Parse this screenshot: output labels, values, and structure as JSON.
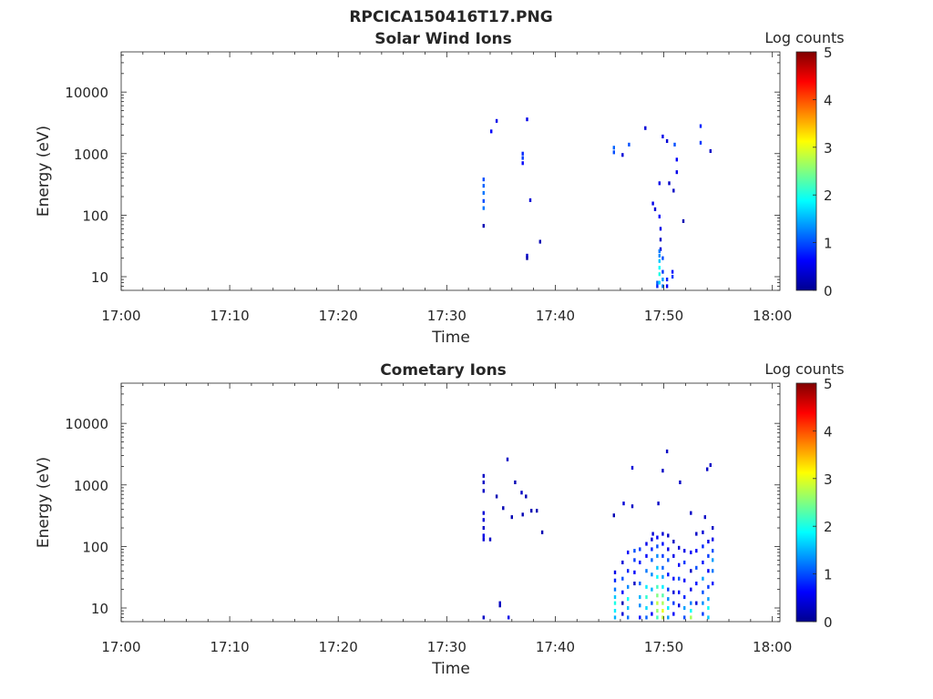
{
  "figure": {
    "title": "RPCICA150416T17.PNG",
    "colorbar_colors": [
      "#00008f",
      "#0000ff",
      "#0080ff",
      "#00ffff",
      "#80ff80",
      "#ffff00",
      "#ff8000",
      "#ff0000",
      "#800000"
    ]
  },
  "chart_data": [
    {
      "type": "heatmap",
      "title": "Solar Wind Ions",
      "xlabel": "Time",
      "ylabel": "Energy (eV)",
      "xticks": [
        "17:00",
        "17:10",
        "17:20",
        "17:30",
        "17:40",
        "17:50",
        "18:00"
      ],
      "xlim_minutes": [
        0,
        60.7
      ],
      "yscale": "log",
      "ylim": [
        6,
        45000
      ],
      "yticks": [
        10,
        100,
        1000,
        10000
      ],
      "ytick_labels": [
        "10",
        "100",
        "1000",
        "10000"
      ],
      "colorbar": {
        "label": "Log counts",
        "range": [
          0,
          5
        ],
        "ticks": [
          "0",
          "1",
          "2",
          "3",
          "4",
          "5"
        ]
      },
      "cells": [
        [
          33.4,
          67,
          0.2
        ],
        [
          33.4,
          130,
          1.2
        ],
        [
          33.4,
          170,
          1.0
        ],
        [
          33.4,
          230,
          1.2
        ],
        [
          33.4,
          300,
          1.1
        ],
        [
          33.4,
          380,
          1.0
        ],
        [
          34.1,
          2300,
          0.6
        ],
        [
          34.6,
          3400,
          0.5
        ],
        [
          37.0,
          700,
          0.6
        ],
        [
          37.0,
          850,
          0.9
        ],
        [
          37.0,
          1000,
          0.8
        ],
        [
          37.4,
          3600,
          0.5
        ],
        [
          37.7,
          175,
          0.4
        ],
        [
          37.4,
          20,
          0.1
        ],
        [
          37.4,
          22,
          0.3
        ],
        [
          38.6,
          37,
          0.2
        ],
        [
          45.4,
          1050,
          1.0
        ],
        [
          45.4,
          1250,
          1.1
        ],
        [
          46.2,
          950,
          0.4
        ],
        [
          46.8,
          1400,
          1.0
        ],
        [
          48.3,
          2600,
          0.4
        ],
        [
          49.0,
          155,
          0.5
        ],
        [
          49.2,
          125,
          0.4
        ],
        [
          49.6,
          95,
          0.6
        ],
        [
          49.6,
          330,
          0.5
        ],
        [
          49.9,
          1900,
          0.5
        ],
        [
          50.3,
          1600,
          0.4
        ],
        [
          50.5,
          330,
          0.3
        ],
        [
          50.9,
          250,
          0.3
        ],
        [
          51.0,
          1400,
          1.0
        ],
        [
          51.2,
          800,
          0.6
        ],
        [
          51.2,
          500,
          0.5
        ],
        [
          51.8,
          80,
          0.2
        ],
        [
          53.4,
          2800,
          0.8
        ],
        [
          53.4,
          1500,
          0.9
        ],
        [
          54.3,
          1100,
          0.3
        ],
        [
          49.7,
          60,
          0.5
        ],
        [
          49.7,
          40,
          0.3
        ],
        [
          49.7,
          28,
          0.4
        ],
        [
          49.4,
          7,
          0.8
        ],
        [
          49.4,
          8,
          1.1
        ],
        [
          49.6,
          8,
          1.7
        ],
        [
          49.6,
          11,
          2.0
        ],
        [
          49.6,
          14,
          1.9
        ],
        [
          49.6,
          18,
          1.6
        ],
        [
          49.6,
          22,
          1.3
        ],
        [
          49.6,
          26,
          1.2
        ],
        [
          49.9,
          7,
          1.2
        ],
        [
          49.9,
          9,
          1.4
        ],
        [
          49.9,
          12,
          0.9
        ],
        [
          49.9,
          20,
          1.0
        ],
        [
          50.3,
          7,
          0.6
        ],
        [
          50.3,
          9,
          0.8
        ],
        [
          50.8,
          12,
          0.7
        ],
        [
          50.8,
          10,
          0.9
        ]
      ]
    },
    {
      "type": "heatmap",
      "title": "Cometary Ions",
      "xlabel": "Time",
      "ylabel": "Energy (eV)",
      "xticks": [
        "17:00",
        "17:10",
        "17:20",
        "17:30",
        "17:40",
        "17:50",
        "18:00"
      ],
      "xlim_minutes": [
        0,
        60.7
      ],
      "yscale": "log",
      "ylim": [
        6,
        45000
      ],
      "yticks": [
        10,
        100,
        1000,
        10000
      ],
      "ytick_labels": [
        "10",
        "100",
        "1000",
        "10000"
      ],
      "colorbar": {
        "label": "Log counts",
        "range": [
          0,
          5
        ],
        "ticks": [
          "0",
          "1",
          "2",
          "3",
          "4",
          "5"
        ]
      },
      "cells": [
        [
          33.4,
          1400,
          0.3
        ],
        [
          33.4,
          1100,
          0.3
        ],
        [
          33.4,
          800,
          0.3
        ],
        [
          33.4,
          350,
          0.4
        ],
        [
          33.4,
          270,
          0.4
        ],
        [
          33.4,
          200,
          0.3
        ],
        [
          33.4,
          150,
          0.5
        ],
        [
          33.4,
          130,
          0.4
        ],
        [
          34.0,
          130,
          0.3
        ],
        [
          34.6,
          650,
          0.2
        ],
        [
          35.2,
          420,
          0.2
        ],
        [
          35.6,
          2600,
          0.3
        ],
        [
          36.0,
          300,
          0.2
        ],
        [
          36.3,
          1100,
          0.2
        ],
        [
          36.9,
          750,
          0.3
        ],
        [
          37.0,
          330,
          0.2
        ],
        [
          37.3,
          650,
          0.2
        ],
        [
          37.8,
          380,
          0.2
        ],
        [
          38.3,
          380,
          0.2
        ],
        [
          38.8,
          170,
          0.2
        ],
        [
          34.9,
          11,
          0.2
        ],
        [
          34.9,
          12,
          0.3
        ],
        [
          35.7,
          7,
          0.5
        ],
        [
          33.4,
          7,
          0.3
        ],
        [
          45.4,
          320,
          0.2
        ],
        [
          46.3,
          500,
          0.4
        ],
        [
          47.1,
          1900,
          0.4
        ],
        [
          47.1,
          450,
          0.3
        ],
        [
          49.0,
          160,
          0.4
        ],
        [
          49.5,
          500,
          0.3
        ],
        [
          49.9,
          1700,
          0.3
        ],
        [
          50.3,
          3500,
          0.3
        ],
        [
          51.5,
          1100,
          0.3
        ],
        [
          52.5,
          350,
          0.3
        ],
        [
          53.8,
          300,
          0.3
        ],
        [
          54.0,
          1800,
          0.3
        ],
        [
          54.3,
          2100,
          0.3
        ],
        [
          45.5,
          7,
          1.5
        ],
        [
          45.5,
          9,
          1.8
        ],
        [
          45.5,
          12,
          2.0
        ],
        [
          45.5,
          15,
          1.6
        ],
        [
          45.5,
          20,
          1.2
        ],
        [
          45.5,
          28,
          0.8
        ],
        [
          45.5,
          38,
          0.5
        ],
        [
          46.2,
          8,
          0.4
        ],
        [
          46.2,
          12,
          0.2
        ],
        [
          46.2,
          18,
          0.6
        ],
        [
          46.2,
          30,
          1.0
        ],
        [
          46.2,
          55,
          0.4
        ],
        [
          46.7,
          7,
          1.2
        ],
        [
          46.7,
          10,
          1.6
        ],
        [
          46.7,
          14,
          1.9
        ],
        [
          46.7,
          22,
          1.3
        ],
        [
          46.7,
          40,
          0.8
        ],
        [
          46.7,
          80,
          0.6
        ],
        [
          47.3,
          25,
          0.3
        ],
        [
          47.3,
          38,
          0.6
        ],
        [
          47.3,
          60,
          0.9
        ],
        [
          47.3,
          85,
          1.0
        ],
        [
          47.8,
          7,
          0.7
        ],
        [
          47.8,
          11,
          1.3
        ],
        [
          47.8,
          15,
          1.5
        ],
        [
          47.8,
          25,
          1.1
        ],
        [
          47.8,
          55,
          0.7
        ],
        [
          47.8,
          90,
          0.9
        ],
        [
          48.4,
          7,
          1.1
        ],
        [
          48.4,
          10,
          1.7
        ],
        [
          48.4,
          15,
          2.1
        ],
        [
          48.4,
          22,
          1.8
        ],
        [
          48.4,
          40,
          1.2
        ],
        [
          48.4,
          70,
          0.6
        ],
        [
          48.4,
          110,
          0.5
        ],
        [
          48.9,
          8,
          0.6
        ],
        [
          48.9,
          12,
          1.0
        ],
        [
          48.9,
          20,
          1.5
        ],
        [
          48.9,
          35,
          1.3
        ],
        [
          48.9,
          60,
          1.1
        ],
        [
          48.9,
          90,
          0.8
        ],
        [
          48.9,
          130,
          0.4
        ],
        [
          49.4,
          7,
          2.2
        ],
        [
          49.4,
          9,
          2.6
        ],
        [
          49.4,
          12,
          2.8
        ],
        [
          49.4,
          16,
          2.5
        ],
        [
          49.4,
          22,
          2.2
        ],
        [
          49.4,
          32,
          1.9
        ],
        [
          49.4,
          45,
          1.6
        ],
        [
          49.4,
          70,
          1.3
        ],
        [
          49.4,
          100,
          1.0
        ],
        [
          49.4,
          140,
          0.6
        ],
        [
          49.9,
          7,
          2.8
        ],
        [
          49.9,
          9,
          3.0
        ],
        [
          49.9,
          12,
          2.7
        ],
        [
          49.9,
          16,
          2.3
        ],
        [
          49.9,
          22,
          1.8
        ],
        [
          49.9,
          32,
          1.4
        ],
        [
          49.9,
          45,
          1.1
        ],
        [
          49.9,
          70,
          0.9
        ],
        [
          49.9,
          110,
          0.7
        ],
        [
          49.9,
          160,
          0.4
        ],
        [
          50.4,
          7,
          1.4
        ],
        [
          50.4,
          10,
          1.8
        ],
        [
          50.4,
          14,
          1.3
        ],
        [
          50.4,
          20,
          0.9
        ],
        [
          50.4,
          35,
          0.7
        ],
        [
          50.4,
          60,
          1.0
        ],
        [
          50.4,
          90,
          0.5
        ],
        [
          50.4,
          150,
          0.3
        ],
        [
          50.9,
          8,
          0.6
        ],
        [
          50.9,
          12,
          0.9
        ],
        [
          50.9,
          18,
          0.4
        ],
        [
          50.9,
          30,
          0.7
        ],
        [
          50.9,
          70,
          0.5
        ],
        [
          50.9,
          120,
          0.3
        ],
        [
          51.4,
          11,
          0.5
        ],
        [
          51.4,
          18,
          0.7
        ],
        [
          51.4,
          30,
          1.0
        ],
        [
          51.4,
          50,
          0.6
        ],
        [
          51.4,
          95,
          0.4
        ],
        [
          51.9,
          7,
          1.0
        ],
        [
          51.9,
          10,
          1.4
        ],
        [
          51.9,
          15,
          0.8
        ],
        [
          51.9,
          28,
          0.6
        ],
        [
          51.9,
          55,
          0.9
        ],
        [
          51.9,
          85,
          0.5
        ],
        [
          52.5,
          7,
          2.7
        ],
        [
          52.5,
          9,
          1.9
        ],
        [
          52.5,
          12,
          1.2
        ],
        [
          52.5,
          20,
          0.5
        ],
        [
          52.5,
          40,
          0.3
        ],
        [
          52.5,
          80,
          0.6
        ],
        [
          53.0,
          12,
          0.4
        ],
        [
          53.0,
          25,
          0.7
        ],
        [
          53.0,
          45,
          1.0
        ],
        [
          53.0,
          85,
          0.6
        ],
        [
          53.0,
          160,
          0.3
        ],
        [
          53.6,
          8,
          0.9
        ],
        [
          53.6,
          12,
          1.3
        ],
        [
          53.6,
          18,
          1.0
        ],
        [
          53.6,
          30,
          1.4
        ],
        [
          53.6,
          55,
          0.7
        ],
        [
          53.6,
          100,
          0.8
        ],
        [
          53.6,
          170,
          0.4
        ],
        [
          54.1,
          7,
          1.6
        ],
        [
          54.1,
          10,
          1.9
        ],
        [
          54.1,
          14,
          1.4
        ],
        [
          54.1,
          22,
          0.9
        ],
        [
          54.1,
          40,
          0.6
        ],
        [
          54.1,
          70,
          0.9
        ],
        [
          54.1,
          120,
          0.5
        ],
        [
          54.5,
          25,
          0.7
        ],
        [
          54.5,
          40,
          1.2
        ],
        [
          54.5,
          60,
          1.4
        ],
        [
          54.5,
          85,
          1.0
        ],
        [
          54.5,
          130,
          0.5
        ],
        [
          54.5,
          200,
          0.3
        ]
      ]
    }
  ]
}
